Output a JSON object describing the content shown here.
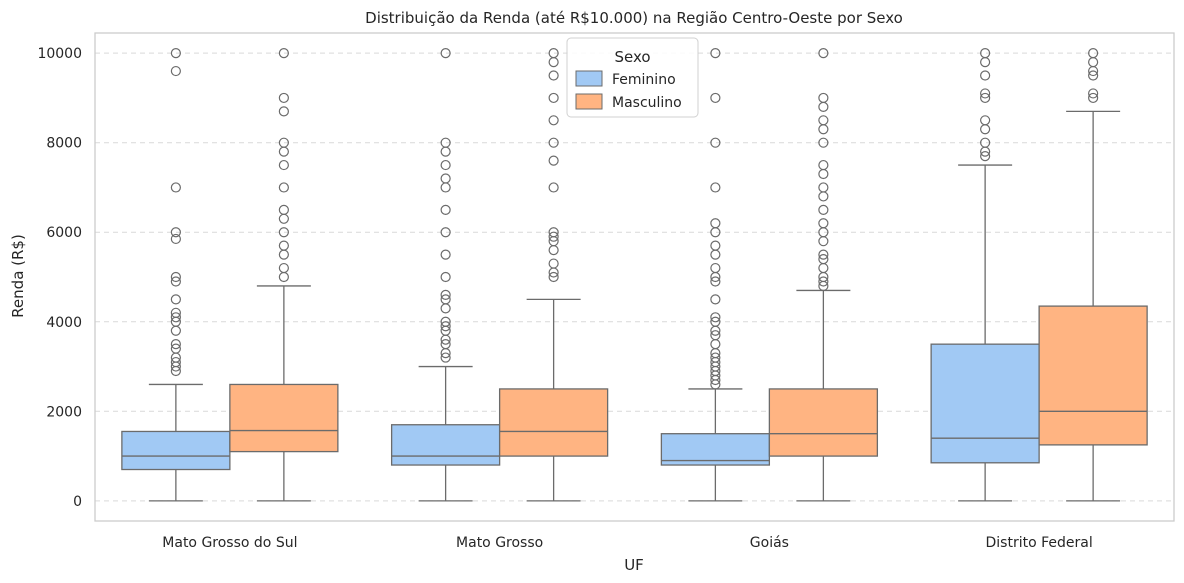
{
  "chart_data": {
    "type": "boxplot",
    "title": "Distribuição da Renda (até R$10.000) na Região Centro-Oeste por Sexo",
    "xlabel": "UF",
    "ylabel": "Renda (R$)",
    "ylim": [
      -450,
      10450
    ],
    "yticks": [
      0,
      2000,
      4000,
      6000,
      8000,
      10000
    ],
    "grid": "horizontal-dashed",
    "legend": {
      "title": "Sexo",
      "placement": "top-center",
      "entries": [
        "Feminino",
        "Masculino"
      ]
    },
    "categories": [
      "Mato Grosso do Sul",
      "Mato Grosso",
      "Goiás",
      "Distrito Federal"
    ],
    "series": [
      {
        "name": "Feminino",
        "color": "#a1c9f4",
        "boxes": [
          {
            "whisker_low": 0,
            "q1": 700,
            "median": 1000,
            "q3": 1550,
            "whisker_high": 2600,
            "outliers": [
              2900,
              3000,
              3100,
              3200,
              3400,
              3500,
              3800,
              4000,
              4100,
              4200,
              4500,
              4900,
              5000,
              5850,
              6000,
              7000,
              9600,
              10000
            ]
          },
          {
            "whisker_low": 0,
            "q1": 800,
            "median": 1000,
            "q3": 1700,
            "whisker_high": 3000,
            "outliers": [
              3200,
              3300,
              3500,
              3600,
              3800,
              3900,
              4000,
              4300,
              4500,
              4600,
              5000,
              5500,
              6000,
              6500,
              7000,
              7200,
              7500,
              7800,
              8000,
              10000
            ]
          },
          {
            "whisker_low": 0,
            "q1": 800,
            "median": 900,
            "q3": 1500,
            "whisker_high": 2500,
            "outliers": [
              2600,
              2700,
              2800,
              2900,
              3000,
              3100,
              3200,
              3300,
              3500,
              3700,
              3800,
              4000,
              4100,
              4500,
              4900,
              5000,
              5200,
              5500,
              5700,
              6000,
              6200,
              7000,
              8000,
              9000,
              10000
            ]
          },
          {
            "whisker_low": 0,
            "q1": 850,
            "median": 1400,
            "q3": 3500,
            "whisker_high": 7500,
            "outliers": [
              7700,
              7800,
              8000,
              8300,
              8500,
              9000,
              9100,
              9500,
              9800,
              10000
            ]
          }
        ]
      },
      {
        "name": "Masculino",
        "color": "#ffb482",
        "boxes": [
          {
            "whisker_low": 0,
            "q1": 1100,
            "median": 1570,
            "q3": 2600,
            "whisker_high": 4800,
            "outliers": [
              5000,
              5200,
              5500,
              5700,
              6000,
              6300,
              6500,
              7000,
              7500,
              7800,
              8000,
              8700,
              9000,
              10000
            ]
          },
          {
            "whisker_low": 0,
            "q1": 1000,
            "median": 1550,
            "q3": 2500,
            "whisker_high": 4500,
            "outliers": [
              5000,
              5100,
              5300,
              5600,
              5800,
              5900,
              6000,
              7000,
              7600,
              8000,
              8500,
              9000,
              9500,
              9800,
              10000
            ]
          },
          {
            "whisker_low": 0,
            "q1": 1000,
            "median": 1500,
            "q3": 2500,
            "whisker_high": 4700,
            "outliers": [
              4800,
              4900,
              5000,
              5200,
              5400,
              5500,
              5800,
              6000,
              6200,
              6500,
              6800,
              7000,
              7300,
              7500,
              8000,
              8300,
              8500,
              8800,
              9000,
              10000
            ]
          },
          {
            "whisker_low": 0,
            "q1": 1250,
            "median": 2000,
            "q3": 4350,
            "whisker_high": 8700,
            "outliers": [
              9000,
              9100,
              9500,
              9600,
              9800,
              10000
            ]
          }
        ]
      }
    ]
  }
}
